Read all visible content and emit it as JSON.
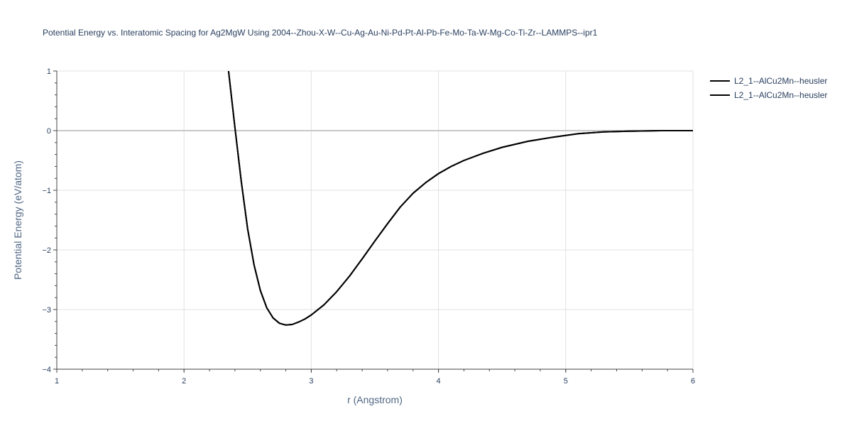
{
  "chart_data": {
    "type": "line",
    "title": "Potential Energy vs. Interatomic Spacing for Ag2MgW Using 2004--Zhou-X-W--Cu-Ag-Au-Ni-Pd-Pt-Al-Pb-Fe-Mo-Ta-W-Mg-Co-Ti-Zr--LAMMPS--ipr1",
    "xlabel": "r (Angstrom)",
    "ylabel": "Potential Energy (eV/atom)",
    "xlim": [
      1,
      6
    ],
    "ylim": [
      -4,
      1
    ],
    "x_ticks": [
      "1",
      "2",
      "3",
      "4",
      "5",
      "6"
    ],
    "y_ticks": [
      "1",
      "0",
      "−1",
      "−2",
      "−3",
      "−4"
    ],
    "grid": true,
    "legend_position": "top-right",
    "series": [
      {
        "name": "L2_1--AlCu2Mn--heusler",
        "color": "#000000",
        "x": [
          2.35,
          2.4,
          2.45,
          2.5,
          2.55,
          2.6,
          2.65,
          2.7,
          2.75,
          2.8,
          2.85,
          2.9,
          2.95,
          3.0,
          3.1,
          3.2,
          3.3,
          3.4,
          3.5,
          3.6,
          3.7,
          3.8,
          3.9,
          4.0,
          4.1,
          4.2,
          4.35,
          4.5,
          4.7,
          4.9,
          5.1,
          5.3,
          5.5,
          5.75,
          6.0
        ],
        "y": [
          1.0,
          0.05,
          -0.85,
          -1.65,
          -2.25,
          -2.68,
          -2.97,
          -3.14,
          -3.23,
          -3.26,
          -3.25,
          -3.21,
          -3.16,
          -3.09,
          -2.92,
          -2.7,
          -2.44,
          -2.15,
          -1.85,
          -1.56,
          -1.28,
          -1.05,
          -0.87,
          -0.72,
          -0.6,
          -0.5,
          -0.38,
          -0.28,
          -0.18,
          -0.11,
          -0.05,
          -0.02,
          -0.01,
          0.0,
          0.0
        ]
      },
      {
        "name": "L2_1--AlCu2Mn--heusler",
        "color": "#000000",
        "x": [
          2.35,
          2.4,
          2.45,
          2.5,
          2.55,
          2.6,
          2.65,
          2.7,
          2.75,
          2.8,
          2.85,
          2.9,
          2.95,
          3.0,
          3.1,
          3.2,
          3.3,
          3.4,
          3.5,
          3.6,
          3.7,
          3.8,
          3.9,
          4.0,
          4.1,
          4.2,
          4.35,
          4.5,
          4.7,
          4.9,
          5.1,
          5.3,
          5.5,
          5.75,
          6.0
        ],
        "y": [
          1.0,
          0.05,
          -0.85,
          -1.65,
          -2.25,
          -2.68,
          -2.97,
          -3.14,
          -3.23,
          -3.26,
          -3.25,
          -3.21,
          -3.16,
          -3.09,
          -2.92,
          -2.7,
          -2.44,
          -2.15,
          -1.85,
          -1.56,
          -1.28,
          -1.05,
          -0.87,
          -0.72,
          -0.6,
          -0.5,
          -0.38,
          -0.28,
          -0.18,
          -0.11,
          -0.05,
          -0.02,
          -0.01,
          0.0,
          0.0
        ]
      }
    ]
  }
}
